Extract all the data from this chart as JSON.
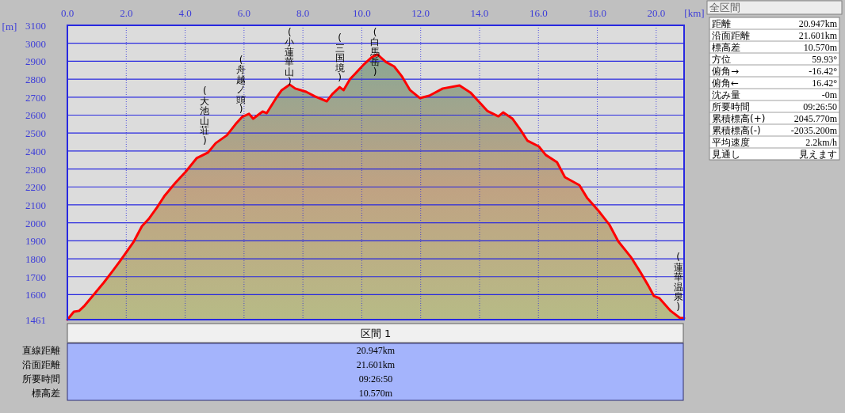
{
  "chart_data": {
    "type": "area",
    "xlabel": "[km]",
    "ylabel": "[m]",
    "x": [
      0,
      0.22,
      0.4,
      0.59,
      0.86,
      1.24,
      1.51,
      1.81,
      2.0,
      2.26,
      2.53,
      2.78,
      3.05,
      3.29,
      3.67,
      4.02,
      4.39,
      4.77,
      5.04,
      5.42,
      5.71,
      5.93,
      6.17,
      6.31,
      6.63,
      6.77,
      7.09,
      7.28,
      7.55,
      7.74,
      8.11,
      8.41,
      8.81,
      9.0,
      9.25,
      9.38,
      9.6,
      9.78,
      10.08,
      10.35,
      10.54,
      10.81,
      11.1,
      11.37,
      11.64,
      11.97,
      12.29,
      12.75,
      13.32,
      13.69,
      13.99,
      14.26,
      14.64,
      14.8,
      15.12,
      15.39,
      15.63,
      16.01,
      16.25,
      16.63,
      16.9,
      17.39,
      17.65,
      18.03,
      18.41,
      18.71,
      19.16,
      19.46,
      19.73,
      19.92,
      20.11,
      20.49,
      20.81,
      20.947
    ],
    "series": [
      {
        "color": "#ff0000",
        "values": [
          1461,
          1505,
          1510,
          1540,
          1593,
          1668,
          1726,
          1792,
          1836,
          1897,
          1981,
          2025,
          2087,
          2148,
          2223,
          2285,
          2360,
          2391,
          2444,
          2488,
          2549,
          2589,
          2607,
          2580,
          2620,
          2611,
          2695,
          2739,
          2770,
          2748,
          2730,
          2704,
          2677,
          2717,
          2756,
          2739,
          2800,
          2831,
          2884,
          2924,
          2937,
          2897,
          2871,
          2814,
          2739,
          2695,
          2708,
          2748,
          2765,
          2726,
          2673,
          2624,
          2593,
          2615,
          2580,
          2518,
          2457,
          2426,
          2378,
          2338,
          2254,
          2210,
          2140,
          2069,
          1990,
          1897,
          1805,
          1726,
          1651,
          1593,
          1580,
          1510,
          1470,
          1470
        ]
      }
    ],
    "xlim": [
      0,
      20.947
    ],
    "ylim": [
      1461,
      3100
    ],
    "xticks": [
      {
        "value": 0,
        "label": "0.0"
      },
      {
        "value": 2,
        "label": "2.0"
      },
      {
        "value": 4,
        "label": "4.0"
      },
      {
        "value": 6,
        "label": "6.0"
      },
      {
        "value": 8,
        "label": "8.0"
      },
      {
        "value": 10,
        "label": "10.0"
      },
      {
        "value": 12,
        "label": "12.0"
      },
      {
        "value": 14,
        "label": "14.0"
      },
      {
        "value": 16,
        "label": "16.0"
      },
      {
        "value": 18,
        "label": "18.0"
      },
      {
        "value": 20,
        "label": "20.0"
      }
    ],
    "yticks": [
      1461,
      1600,
      1700,
      1800,
      1900,
      2000,
      2100,
      2200,
      2300,
      2400,
      2500,
      2600,
      2700,
      2800,
      2900,
      3000,
      3100
    ],
    "grid": true,
    "annotations": [
      {
        "text": "(大池山荘)",
        "x": 4.67,
        "y": 2405
      },
      {
        "text": "(舟越ノ頭)",
        "x": 5.9,
        "y": 2580
      },
      {
        "text": "(小蓮華山)",
        "x": 7.55,
        "y": 2770
      },
      {
        "text": "(三国境)",
        "x": 9.25,
        "y": 2756
      },
      {
        "text": "(白馬岳)",
        "x": 10.45,
        "y": 2937
      },
      {
        "text": "(蓮華温泉)",
        "x": 20.75,
        "y": 1480
      },
      "全区間",
      "距離",
      "20.947km",
      "沿面距離",
      "21.601km",
      "標高差",
      "10.570m",
      "方位",
      "59.93°",
      "俯角→",
      "-16.42°",
      "俯角←",
      "16.42°",
      "沈み量",
      "-0m",
      "所要時間",
      "09:26:50",
      "累積標高(+)",
      "2045.770m",
      "累積標高(-)",
      "-2035.200m",
      "平均速度",
      "2.2km/h",
      "見通し",
      "見えます",
      "区間 1",
      "直線距離",
      "20.947km",
      "沿面距離",
      "21.601km",
      "所要時間",
      "09:26:50",
      "標高差",
      "10.570m"
    ]
  }
}
